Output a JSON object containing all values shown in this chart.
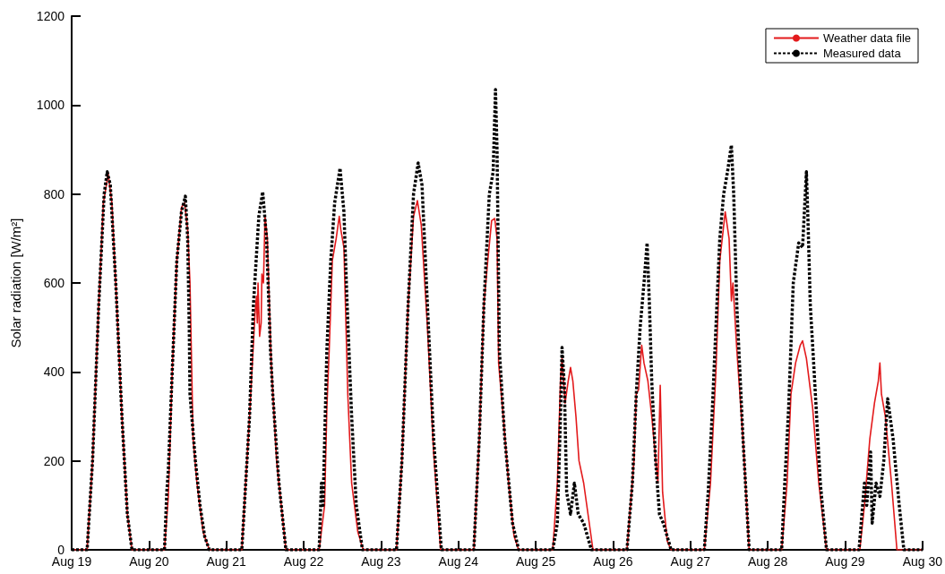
{
  "chart_data": {
    "type": "line",
    "ylabel": "Solar radiation [W/m²]",
    "xlim": [
      "--08-19",
      "--08-30"
    ],
    "ylim": [
      0,
      1200
    ],
    "xticks": [
      {
        "value": "--08-19",
        "label": "Aug 19"
      },
      {
        "value": "--08-20",
        "label": "Aug 20"
      },
      {
        "value": "--08-21",
        "label": "Aug 21"
      },
      {
        "value": "--08-22",
        "label": "Aug 22"
      },
      {
        "value": "--08-23",
        "label": "Aug 23"
      },
      {
        "value": "--08-24",
        "label": "Aug 24"
      },
      {
        "value": "--08-25",
        "label": "Aug 25"
      },
      {
        "value": "--08-26",
        "label": "Aug 26"
      },
      {
        "value": "--08-27",
        "label": "Aug 27"
      },
      {
        "value": "--08-28",
        "label": "Aug 28"
      },
      {
        "value": "--08-29",
        "label": "Aug 29"
      },
      {
        "value": "--08-30",
        "label": "Aug 30"
      }
    ],
    "yticks": [
      0,
      200,
      400,
      600,
      800,
      1000,
      1200
    ],
    "grid": false,
    "legend": "top right",
    "marker": "none",
    "series": [
      {
        "name": "Weather data file",
        "color": "#e31a1c",
        "line_style": "solid",
        "x": [
          "--08-19T00:00",
          "--08-19T04:48",
          "--08-19T06:29",
          "--08-19T08:24",
          "--08-19T09:50",
          "--08-19T10:48",
          "--08-19T11:17",
          "--08-19T12:29",
          "--08-19T13:41",
          "--08-19T15:36",
          "--08-19T17:17",
          "--08-19T18:43",
          "--08-20T04:48",
          "--08-20T06:00",
          "--08-20T07:12",
          "--08-20T08:38",
          "--08-20T10:05",
          "--08-20T11:02",
          "--08-20T12:00",
          "--08-20T12:43",
          "--08-20T13:41",
          "--08-20T14:53",
          "--08-20T16:48",
          "--08-20T18:43",
          "--08-21T04:48",
          "--08-21T07:12",
          "--08-21T08:53",
          "--08-21T09:22",
          "--08-21T09:36",
          "--08-21T09:50",
          "--08-21T10:19",
          "--08-21T10:48",
          "--08-21T11:02",
          "--08-21T11:31",
          "--08-21T12:00",
          "--08-21T12:43",
          "--08-21T13:55",
          "--08-21T15:36",
          "--08-21T18:29",
          "--08-22T04:48",
          "--08-22T06:29",
          "--08-22T07:12",
          "--08-22T07:55",
          "--08-22T08:53",
          "--08-22T10:05",
          "--08-22T11:02",
          "--08-22T11:31",
          "--08-22T12:29",
          "--08-22T13:41",
          "--08-22T14:53",
          "--08-22T16:48",
          "--08-22T18:29",
          "--08-23T04:48",
          "--08-23T06:29",
          "--08-23T08:24",
          "--08-23T10:05",
          "--08-23T11:17",
          "--08-23T12:29",
          "--08-23T14:24",
          "--08-23T16:19",
          "--08-23T18:29",
          "--08-24T04:48",
          "--08-24T06:29",
          "--08-24T07:55",
          "--08-24T09:07",
          "--08-24T10:19",
          "--08-24T11:17",
          "--08-24T12:00",
          "--08-24T12:29",
          "--08-24T13:55",
          "--08-24T15:36",
          "--08-24T17:17",
          "--08-24T18:43",
          "--08-25T05:17",
          "--08-25T06:43",
          "--08-25T07:41",
          "--08-25T08:10",
          "--08-25T09:07",
          "--08-25T10:05",
          "--08-25T10:48",
          "--08-25T11:31",
          "--08-25T12:29",
          "--08-25T13:26",
          "--08-25T14:53",
          "--08-25T17:46",
          "--08-26T04:19",
          "--08-26T06:29",
          "--08-26T07:12",
          "--08-26T07:55",
          "--08-26T08:53",
          "--08-26T09:36",
          "--08-26T10:48",
          "--08-26T12:00",
          "--08-26T13:55",
          "--08-26T14:38",
          "--08-26T15:22",
          "--08-26T16:48",
          "--08-26T18:00",
          "--08-27T04:19",
          "--08-27T06:14",
          "--08-27T07:55",
          "--08-27T09:07",
          "--08-27T10:48",
          "--08-27T12:00",
          "--08-27T12:43",
          "--08-27T13:12",
          "--08-27T14:24",
          "--08-27T16:19",
          "--08-27T18:14",
          "--08-28T04:19",
          "--08-28T06:00",
          "--08-28T07:12",
          "--08-28T08:38",
          "--08-28T10:05",
          "--08-28T10:48",
          "--08-28T12:00",
          "--08-28T13:55",
          "--08-28T15:50",
          "--08-28T18:14",
          "--08-29T04:34",
          "--08-29T06:00",
          "--08-29T07:41",
          "--08-29T09:07",
          "--08-29T10:19",
          "--08-29T10:48",
          "--08-29T11:17",
          "--08-29T12:29",
          "--08-29T14:24",
          "--08-29T16:05",
          "--08-30T00:00"
        ],
        "values": [
          0,
          0,
          200,
          550,
          780,
          820,
          848,
          780,
          600,
          300,
          80,
          0,
          0,
          120,
          400,
          650,
          770,
          780,
          720,
          600,
          250,
          150,
          40,
          0,
          0,
          300,
          530,
          570,
          510,
          600,
          480,
          510,
          620,
          600,
          750,
          700,
          420,
          200,
          0,
          0,
          100,
          320,
          450,
          650,
          700,
          750,
          720,
          680,
          350,
          150,
          40,
          0,
          0,
          200,
          550,
          750,
          785,
          730,
          500,
          220,
          0,
          0,
          250,
          550,
          650,
          740,
          745,
          700,
          420,
          300,
          150,
          30,
          0,
          0,
          150,
          380,
          430,
          330,
          380,
          410,
          380,
          300,
          200,
          150,
          0,
          0,
          200,
          350,
          360,
          460,
          420,
          380,
          300,
          150,
          370,
          130,
          20,
          0,
          0,
          150,
          400,
          650,
          760,
          700,
          560,
          600,
          450,
          250,
          0,
          0,
          150,
          350,
          420,
          460,
          470,
          430,
          320,
          150,
          0,
          0,
          100,
          250,
          330,
          380,
          420,
          350,
          300,
          150,
          0,
          0
        ]
      },
      {
        "name": "Measured data",
        "color": "#000000",
        "line_style": "dotted",
        "x": [
          "--08-19T00:00",
          "--08-19T04:48",
          "--08-19T06:29",
          "--08-19T08:24",
          "--08-19T10:05",
          "--08-19T11:02",
          "--08-19T12:00",
          "--08-19T13:41",
          "--08-19T15:36",
          "--08-19T17:17",
          "--08-19T18:43",
          "--08-20T04:48",
          "--08-20T05:31",
          "--08-20T06:00",
          "--08-20T07:12",
          "--08-20T08:38",
          "--08-20T10:05",
          "--08-20T11:17",
          "--08-20T12:00",
          "--08-20T12:29",
          "--08-20T12:43",
          "--08-20T14:24",
          "--08-20T15:50",
          "--08-20T17:17",
          "--08-20T18:43",
          "--08-21T04:48",
          "--08-21T07:12",
          "--08-21T08:24",
          "--08-21T10:05",
          "--08-21T11:17",
          "--08-21T12:29",
          "--08-21T13:41",
          "--08-21T14:24",
          "--08-21T16:19",
          "--08-21T18:29",
          "--08-22T04:48",
          "--08-22T05:31",
          "--08-22T06:00",
          "--08-22T07:12",
          "--08-22T08:24",
          "--08-22T09:36",
          "--08-22T11:17",
          "--08-22T12:29",
          "--08-22T13:26",
          "--08-22T14:53",
          "--08-22T16:19",
          "--08-22T18:14",
          "--08-23T04:48",
          "--08-23T06:29",
          "--08-23T08:24",
          "--08-23T10:05",
          "--08-23T11:31",
          "--08-23T12:43",
          "--08-23T14:24",
          "--08-23T16:19",
          "--08-23T18:43",
          "--08-24T04:48",
          "--08-24T06:29",
          "--08-24T07:55",
          "--08-24T09:36",
          "--08-24T10:48",
          "--08-24T11:31",
          "--08-24T12:00",
          "--08-24T12:43",
          "--08-24T14:24",
          "--08-24T16:48",
          "--08-24T18:43",
          "--08-25T05:17",
          "--08-25T06:43",
          "--08-25T07:41",
          "--08-25T08:10",
          "--08-25T08:53",
          "--08-25T09:36",
          "--08-25T10:48",
          "--08-25T12:00",
          "--08-25T13:12",
          "--08-25T14:53",
          "--08-25T17:17",
          "--08-26T04:19",
          "--08-26T06:00",
          "--08-26T07:12",
          "--08-26T08:24",
          "--08-26T09:36",
          "--08-26T10:34",
          "--08-26T11:17",
          "--08-26T12:00",
          "--08-26T13:12",
          "--08-26T14:24",
          "--08-26T15:36",
          "--08-26T16:48",
          "--08-26T18:00",
          "--08-27T04:19",
          "--08-27T05:31",
          "--08-27T06:43",
          "--08-27T07:55",
          "--08-27T09:07",
          "--08-27T10:19",
          "--08-27T11:31",
          "--08-27T12:43",
          "--08-27T13:26",
          "--08-27T14:24",
          "--08-27T16:19",
          "--08-27T18:14",
          "--08-28T04:19",
          "--08-28T05:17",
          "--08-28T06:29",
          "--08-28T07:55",
          "--08-28T09:36",
          "--08-28T10:48",
          "--08-28T12:00",
          "--08-28T12:29",
          "--08-28T13:12",
          "--08-28T14:24",
          "--08-28T16:19",
          "--08-28T18:14",
          "--08-29T04:19",
          "--08-29T06:00",
          "--08-29T06:43",
          "--08-29T07:55",
          "--08-29T08:24",
          "--08-29T09:36",
          "--08-29T10:48",
          "--08-29T12:00",
          "--08-29T13:12",
          "--08-29T14:53",
          "--08-29T16:48",
          "--08-29T18:14",
          "--08-30T00:00"
        ],
        "values": [
          0,
          0,
          200,
          550,
          800,
          850,
          820,
          600,
          300,
          80,
          0,
          0,
          130,
          180,
          400,
          650,
          760,
          795,
          700,
          500,
          350,
          200,
          100,
          30,
          0,
          0,
          300,
          550,
          750,
          805,
          700,
          450,
          350,
          150,
          0,
          0,
          150,
          100,
          450,
          650,
          780,
          858,
          760,
          560,
          300,
          100,
          0,
          0,
          200,
          550,
          800,
          870,
          820,
          550,
          250,
          0,
          0,
          250,
          550,
          800,
          850,
          1035,
          900,
          450,
          250,
          60,
          0,
          0,
          60,
          300,
          455,
          370,
          130,
          80,
          150,
          80,
          60,
          0,
          0,
          150,
          350,
          500,
          600,
          690,
          550,
          380,
          200,
          80,
          60,
          30,
          0,
          0,
          130,
          300,
          500,
          700,
          800,
          850,
          910,
          800,
          550,
          250,
          0,
          0,
          150,
          320,
          600,
          690,
          680,
          850,
          740,
          550,
          400,
          150,
          0,
          0,
          150,
          100,
          220,
          60,
          150,
          120,
          200,
          340,
          250,
          100,
          0,
          0
        ]
      }
    ]
  }
}
